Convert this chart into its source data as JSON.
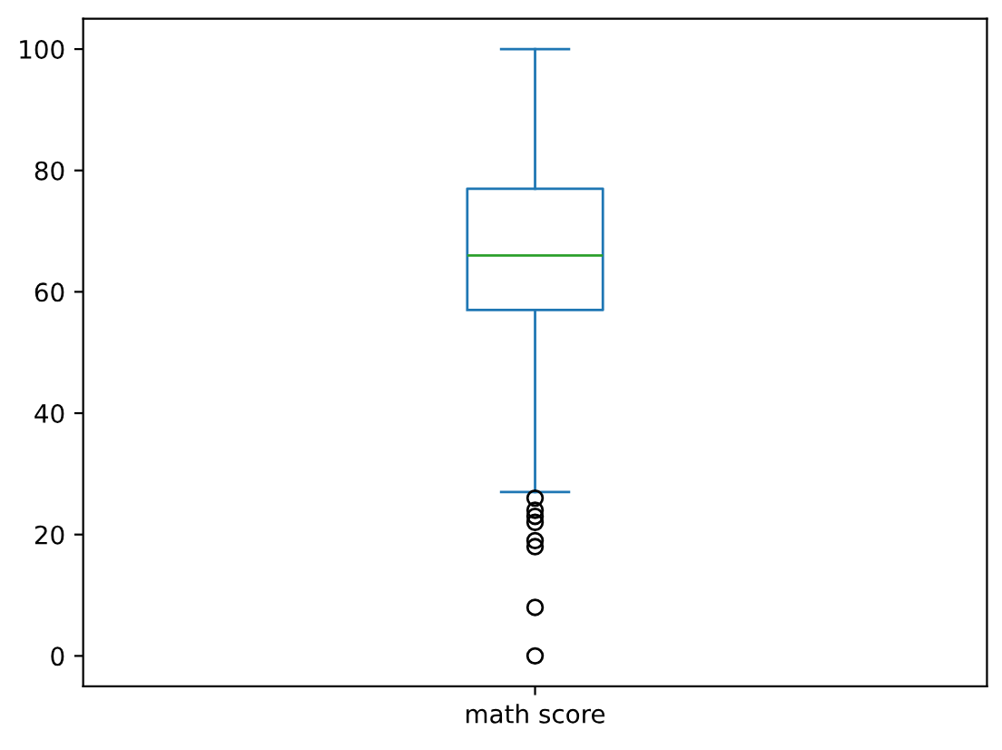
{
  "chart_data": {
    "type": "box",
    "categories": [
      "math score"
    ],
    "boxes": [
      {
        "low": 27,
        "q1": 57,
        "median": 66,
        "q3": 77,
        "high": 100,
        "outliers": [
          0,
          8,
          18,
          19,
          22,
          23,
          24,
          26
        ]
      }
    ],
    "color": "#1f77b4",
    "ylim": [
      -5,
      105
    ],
    "yticks": [
      0,
      20,
      40,
      60,
      80,
      100
    ],
    "grid": false
  }
}
